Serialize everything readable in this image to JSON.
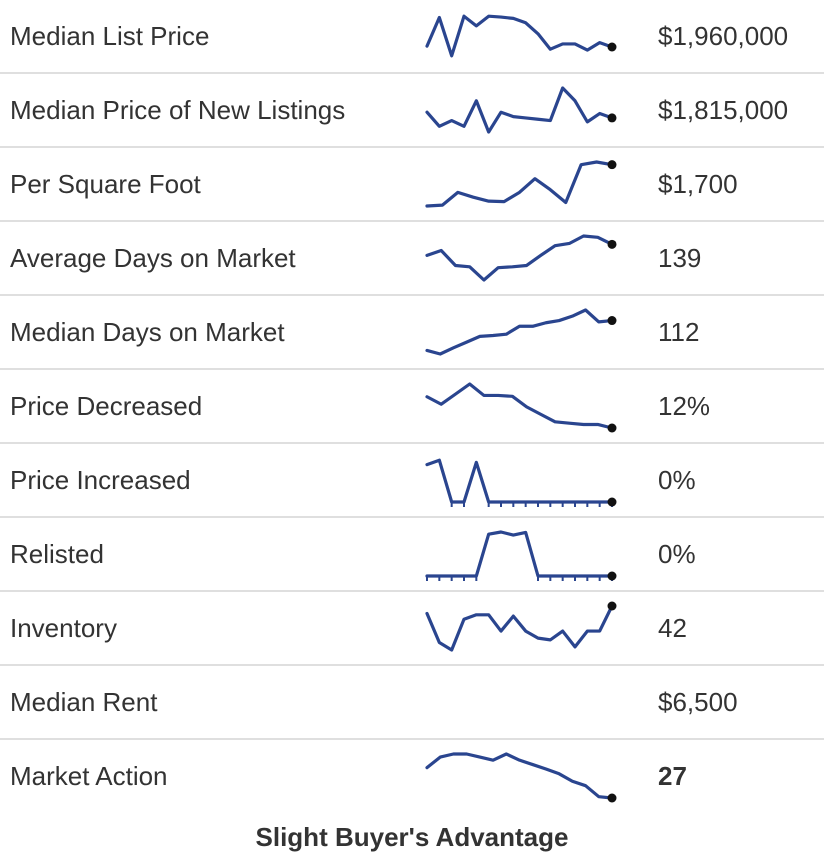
{
  "colors": {
    "line": "#2a458f",
    "end_dot": "#111111",
    "text": "#333333",
    "divider": "#dfdfdf"
  },
  "footer": {
    "label": "Slight Buyer's Advantage"
  },
  "chart_data": [
    {
      "type": "line",
      "label": "Median List Price",
      "value": "$1,960,000",
      "bold": false,
      "ticks": false,
      "end_dot": true,
      "values": [
        27,
        92,
        5,
        95,
        73,
        95,
        93,
        90,
        80,
        55,
        20,
        32,
        32,
        18,
        35,
        25
      ]
    },
    {
      "type": "line",
      "label": "Median Price of New Listings",
      "value": "$1,815,000",
      "bold": false,
      "ticks": false,
      "end_dot": true,
      "values": [
        45,
        13,
        26,
        13,
        71,
        0,
        45,
        35,
        32,
        29,
        26,
        100,
        71,
        23,
        42,
        32
      ]
    },
    {
      "type": "line",
      "label": "Per Square Foot",
      "value": "$1,700",
      "bold": false,
      "ticks": false,
      "end_dot": true,
      "values": [
        0,
        2,
        31,
        20,
        11,
        10,
        31,
        62,
        37,
        8,
        94,
        100,
        94
      ]
    },
    {
      "type": "line",
      "label": "Average Days on Market",
      "value": "139",
      "bold": false,
      "ticks": false,
      "end_dot": true,
      "values": [
        56,
        67,
        33,
        30,
        0,
        28,
        30,
        33,
        56,
        78,
        83,
        100,
        97,
        81
      ]
    },
    {
      "type": "line",
      "label": "Median Days on Market",
      "value": "112",
      "bold": false,
      "ticks": false,
      "end_dot": true,
      "values": [
        8,
        0,
        14,
        27,
        40,
        42,
        45,
        63,
        63,
        71,
        76,
        86,
        100,
        73,
        76
      ]
    },
    {
      "type": "line",
      "label": "Price Decreased",
      "value": "12%",
      "bold": false,
      "ticks": false,
      "end_dot": true,
      "values": [
        71,
        54,
        77,
        100,
        74,
        74,
        72,
        48,
        31,
        14,
        11,
        8,
        8,
        0
      ]
    },
    {
      "type": "line",
      "label": "Price Increased",
      "value": "0%",
      "bold": false,
      "ticks": true,
      "end_dot": true,
      "values": [
        85,
        95,
        0,
        0,
        90,
        0,
        0,
        0,
        0,
        0,
        0,
        0,
        0,
        0,
        0,
        0
      ]
    },
    {
      "type": "line",
      "label": "Relisted",
      "value": "0%",
      "bold": false,
      "ticks": true,
      "end_dot": true,
      "values": [
        0,
        0,
        0,
        0,
        0,
        95,
        100,
        93,
        99,
        0,
        0,
        0,
        0,
        0,
        0,
        0
      ]
    },
    {
      "type": "line",
      "label": "Inventory",
      "value": "42",
      "bold": false,
      "ticks": false,
      "end_dot": true,
      "values": [
        83,
        17,
        0,
        70,
        80,
        80,
        43,
        77,
        43,
        27,
        23,
        43,
        7,
        43,
        43,
        100
      ]
    },
    {
      "type": "none",
      "label": "Median Rent",
      "value": "$6,500",
      "bold": false,
      "ticks": false,
      "end_dot": false,
      "values": null
    },
    {
      "type": "line",
      "label": "Market Action",
      "value": "27",
      "bold": true,
      "ticks": false,
      "end_dot": true,
      "values": [
        69,
        93,
        100,
        100,
        93,
        86,
        100,
        86,
        76,
        66,
        55,
        38,
        28,
        3,
        0
      ]
    }
  ]
}
